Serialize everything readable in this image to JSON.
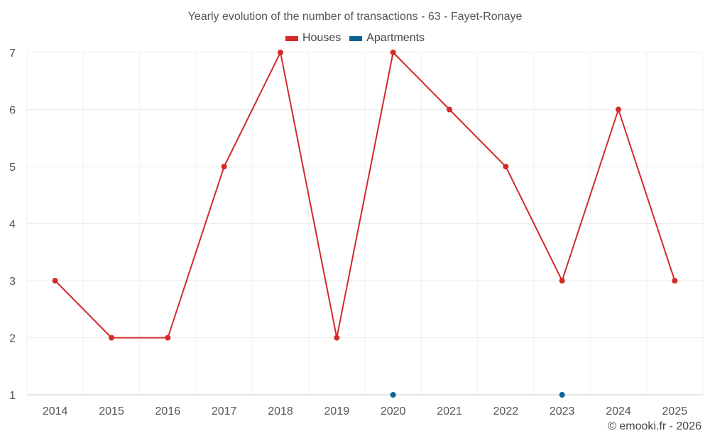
{
  "chart_data": {
    "type": "line",
    "title": "Yearly evolution of the number of transactions - 63 - Fayet-Ronaye",
    "categories": [
      "2014",
      "2015",
      "2016",
      "2017",
      "2018",
      "2019",
      "2020",
      "2021",
      "2022",
      "2023",
      "2024",
      "2025"
    ],
    "series": [
      {
        "name": "Houses",
        "color": "#d32a2a",
        "values": [
          3,
          2,
          2,
          5,
          7,
          2,
          7,
          6,
          5,
          3,
          6,
          3
        ]
      },
      {
        "name": "Apartments",
        "color": "#0b6396",
        "values": [
          null,
          null,
          null,
          null,
          null,
          null,
          1,
          null,
          null,
          1,
          null,
          null
        ]
      }
    ],
    "ylim": [
      1,
      7
    ],
    "yticks": [
      1,
      2,
      3,
      4,
      5,
      6,
      7
    ],
    "xlabel": "",
    "ylabel": "",
    "grid": true,
    "legend_position": "top-center"
  },
  "footer": {
    "credit": "© emooki.fr - 2026"
  }
}
